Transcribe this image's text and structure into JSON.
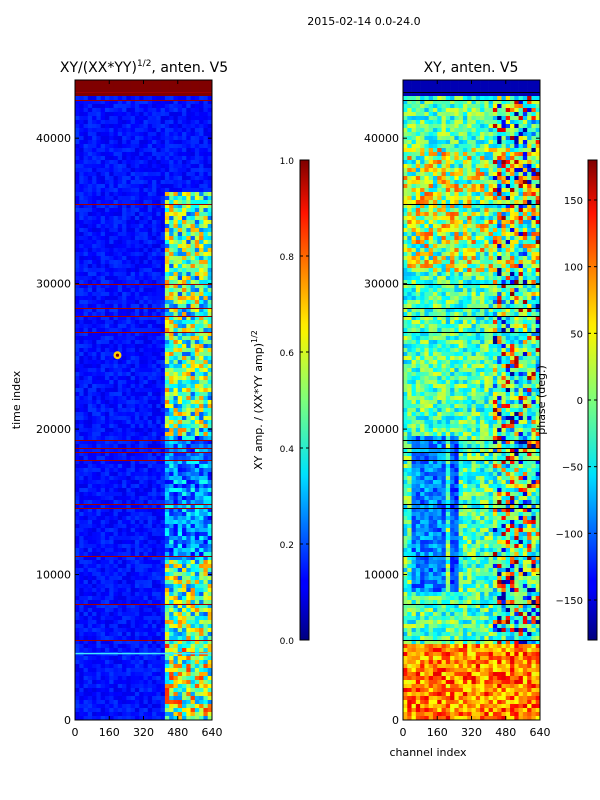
{
  "suptitle": "2015-02-14 0.0-24.0",
  "chart_data": [
    {
      "type": "heatmap",
      "title": "XY/(XX*YY)",
      "title_sup": "1/2",
      "title_suffix": ", anten. V5",
      "xlabel": "",
      "ylabel": "time index",
      "xlim": [
        0,
        640
      ],
      "ylim": [
        0,
        44000
      ],
      "xticks": [
        0,
        160,
        320,
        480,
        640
      ],
      "yticks": [
        0,
        10000,
        20000,
        30000,
        40000
      ],
      "colorbar": {
        "label": "XY amp. / (XX*YY amp)",
        "label_sup": "1/2",
        "range": [
          0.0,
          1.0
        ],
        "ticks": [
          "0.0",
          "0.2",
          "0.4",
          "0.6",
          "0.8",
          "1.0"
        ],
        "tick_values": [
          0.0,
          0.2,
          0.4,
          0.6,
          0.8,
          1.0
        ]
      },
      "colormap": "jet"
    },
    {
      "type": "heatmap",
      "title": "XY, anten. V5",
      "xlabel": "channel index",
      "ylabel": "",
      "xlim": [
        0,
        640
      ],
      "ylim": [
        0,
        44000
      ],
      "xticks": [
        0,
        160,
        320,
        480,
        640
      ],
      "yticks": [
        0,
        10000,
        20000,
        30000,
        40000
      ],
      "colorbar": {
        "label": "phase (deg.)",
        "range": [
          -180,
          180
        ],
        "ticks": [
          "−150",
          "−100",
          "−50",
          "0",
          "50",
          "100",
          "150"
        ],
        "tick_values": [
          -150,
          -100,
          -50,
          0,
          50,
          100,
          150
        ]
      },
      "colormap": "jet"
    }
  ]
}
